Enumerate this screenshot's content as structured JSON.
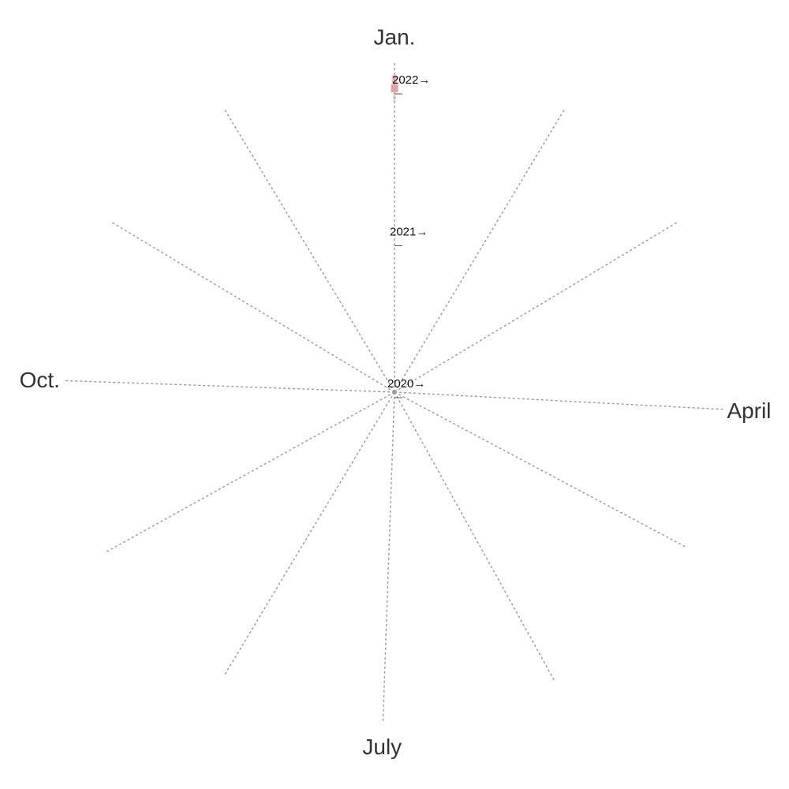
{
  "chart_data": {
    "type": "polar-spiral",
    "title": "",
    "months_shown": [
      {
        "label": "Jan.",
        "angle_deg": 0
      },
      {
        "label": "April",
        "angle_deg": 93
      },
      {
        "label": "July",
        "angle_deg": 182
      },
      {
        "label": "Oct.",
        "angle_deg": 272
      }
    ],
    "spoke_angles_deg": [
      0,
      31,
      59,
      93,
      118,
      151,
      182,
      211,
      241,
      272,
      301,
      329
    ],
    "year_markers": [
      {
        "label": "2020→",
        "radius": 0
      },
      {
        "label": "2021→",
        "radius": 0.5
      },
      {
        "label": "2022→",
        "radius": 1
      }
    ],
    "series": [
      {
        "values": [
          {
            "angle_deg": 0,
            "radius": 0.0,
            "value": 0
          },
          {
            "angle_deg": 0,
            "radius": 0.5,
            "value": 0.02
          },
          {
            "angle_deg": 0,
            "radius": 0.97,
            "value": 0.4
          },
          {
            "angle_deg": 0,
            "radius": 1.0,
            "value": 1.0
          },
          {
            "angle_deg": 0,
            "radius": 1.03,
            "value": 0.7
          }
        ]
      }
    ],
    "colors": {
      "spoke": "#999999",
      "accent": "#e8a0a0",
      "text": "#333333"
    }
  }
}
